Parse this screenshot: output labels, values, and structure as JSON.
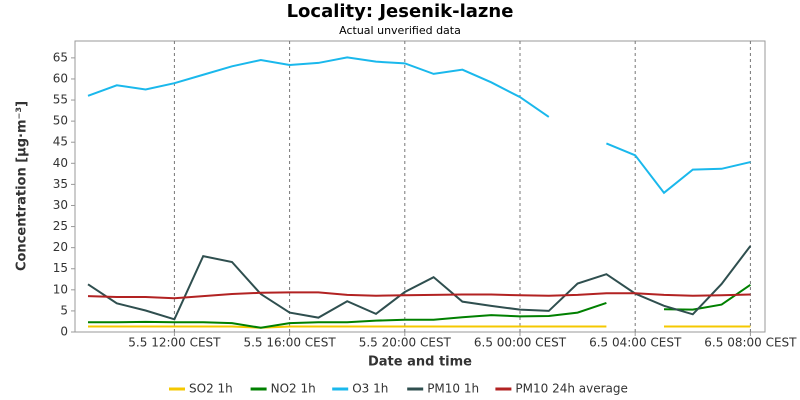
{
  "chart_data": {
    "type": "line",
    "title": "Locality: Jesenik-lazne",
    "subtitle": "Actual unverified data",
    "x_label": "Date and time",
    "y_label": "Concentration [µg·m⁻³]",
    "categories": [
      null,
      null,
      null,
      "5.5 12:00 CEST",
      null,
      null,
      null,
      "5.5 16:00 CEST",
      null,
      null,
      null,
      "5.5 20:00 CEST",
      null,
      null,
      null,
      "6.5 00:00 CEST",
      null,
      null,
      null,
      "6.5 04:00 CEST",
      null,
      null,
      null,
      "6.5 08:00 CEST"
    ],
    "ylim": [
      0,
      69
    ],
    "yticks": [
      0,
      5,
      10,
      15,
      20,
      25,
      30,
      35,
      40,
      45,
      50,
      55,
      60,
      65
    ],
    "grid": true,
    "legend": "bottom",
    "series": [
      {
        "name": "SO2 1h",
        "color": "#f5c800",
        "values": [
          1.3,
          1.3,
          1.3,
          1.3,
          1.3,
          1.3,
          1.0,
          1.3,
          1.3,
          1.3,
          1.3,
          1.3,
          1.3,
          1.3,
          1.3,
          1.3,
          1.3,
          1.3,
          1.3,
          null,
          1.3,
          1.3,
          1.3,
          1.3
        ]
      },
      {
        "name": "NO2 1h",
        "color": "#008000",
        "values": [
          2.3,
          2.3,
          2.4,
          2.3,
          2.3,
          2.1,
          1.0,
          2.1,
          2.3,
          2.3,
          2.7,
          2.9,
          2.9,
          3.5,
          4.0,
          3.7,
          3.8,
          4.6,
          6.9,
          null,
          5.4,
          5.3,
          6.5,
          11.2
        ]
      },
      {
        "name": "O3 1h",
        "color": "#1ab8ec",
        "values": [
          56,
          58.5,
          57.5,
          59,
          61,
          63,
          64.5,
          63.3,
          63.8,
          65.1,
          64.1,
          63.7,
          61.2,
          62.2,
          59.2,
          55.7,
          51,
          null,
          44.7,
          41.9,
          33,
          38.5,
          38.7,
          40.3
        ]
      },
      {
        "name": "PM10 1h",
        "color": "#2f4f4f",
        "values": [
          11.3,
          6.8,
          5.1,
          3.0,
          18.0,
          16.6,
          9.0,
          4.6,
          3.4,
          7.3,
          4.3,
          9.5,
          13.0,
          7.2,
          6.2,
          5.3,
          5.0,
          11.5,
          13.7,
          9.1,
          6.2,
          4.2,
          11.4,
          20.4
        ]
      },
      {
        "name": "PM10 24h average",
        "color": "#b22222",
        "values": [
          8.5,
          8.3,
          8.3,
          8.0,
          8.5,
          9.0,
          9.3,
          9.4,
          9.4,
          8.8,
          8.6,
          8.7,
          8.8,
          8.9,
          8.9,
          8.7,
          8.6,
          8.8,
          9.2,
          9.2,
          8.8,
          8.6,
          8.7,
          8.9
        ]
      }
    ]
  }
}
